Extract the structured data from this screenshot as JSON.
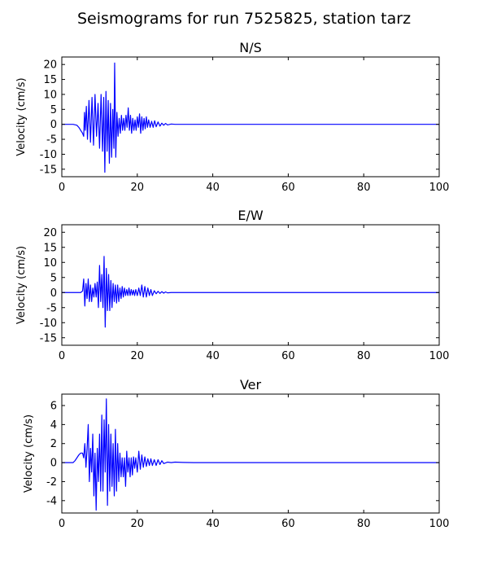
{
  "title": "Seismograms for run 7525825, station tarz",
  "colors": {
    "trace": "#0000ff",
    "axes": "#000000",
    "background": "#ffffff"
  },
  "chart_data": [
    {
      "type": "line",
      "title": "N/S",
      "xlabel": "",
      "ylabel": "Velocity (cm/s)",
      "xlim": [
        0,
        100
      ],
      "ylim": [
        -17.5,
        22.5
      ],
      "xticks": [
        0,
        20,
        40,
        60,
        80,
        100
      ],
      "yticks": [
        -15,
        -10,
        -5,
        0,
        5,
        10,
        15,
        20
      ],
      "grid": false,
      "series": [
        {
          "x": [
            0,
            3,
            4,
            4.5,
            5,
            5.5,
            5.8,
            6,
            6.2,
            6.5,
            6.8,
            7.2,
            7.6,
            8,
            8.4,
            8.8,
            9.2,
            9.6,
            10,
            10.4,
            10.8,
            11.1,
            11.4,
            11.7,
            12,
            12.3,
            12.6,
            12.9,
            13.2,
            13.5,
            13.8,
            14,
            14.3,
            14.6,
            14.9,
            15.2,
            15.5,
            15.8,
            16.1,
            16.4,
            16.7,
            17,
            17.3,
            17.6,
            17.9,
            18.2,
            18.5,
            18.8,
            19.1,
            19.4,
            19.7,
            20,
            20.3,
            20.6,
            20.9,
            21.2,
            21.5,
            21.8,
            22.1,
            22.4,
            22.7,
            23,
            23.4,
            23.8,
            24.2,
            24.6,
            25,
            25.5,
            26,
            26.5,
            27,
            27.5,
            28,
            29,
            30,
            32,
            35,
            40,
            60,
            80,
            100
          ],
          "y": [
            0,
            0,
            -0.3,
            -1,
            -2,
            -3,
            -4,
            4,
            -2,
            6,
            -5,
            8,
            -6,
            9,
            -7,
            10,
            -4,
            7,
            -8,
            10,
            -9,
            9,
            -16,
            11,
            -9,
            8,
            -13,
            7,
            -11,
            5,
            -8,
            20.5,
            -11,
            4,
            -4,
            2,
            -3,
            3,
            -2,
            2,
            -2,
            3,
            -1,
            5.5,
            -2,
            3,
            -3,
            2,
            -2,
            1.5,
            -2,
            2.5,
            -1,
            3.5,
            -3,
            2.5,
            -2,
            2,
            -1.5,
            2.5,
            -1,
            1.5,
            -1,
            1,
            -1,
            1.2,
            -0.8,
            0.8,
            -0.6,
            0.4,
            -0.3,
            0.3,
            -0.2,
            0.1,
            0,
            0,
            0,
            0,
            0,
            0,
            0
          ]
        }
      ]
    },
    {
      "type": "line",
      "title": "E/W",
      "xlabel": "",
      "ylabel": "Velocity (cm/s)",
      "xlim": [
        0,
        100
      ],
      "ylim": [
        -17.5,
        22.5
      ],
      "xticks": [
        0,
        20,
        40,
        60,
        80,
        100
      ],
      "yticks": [
        -15,
        -10,
        -5,
        0,
        5,
        10,
        15,
        20
      ],
      "grid": false,
      "series": [
        {
          "x": [
            0,
            5,
            5.5,
            5.8,
            6.1,
            6.4,
            6.7,
            7,
            7.3,
            7.6,
            7.9,
            8.2,
            8.5,
            8.8,
            9.1,
            9.4,
            9.7,
            10,
            10.3,
            10.6,
            10.9,
            11.2,
            11.5,
            11.8,
            12.1,
            12.4,
            12.7,
            13,
            13.3,
            13.6,
            13.9,
            14.2,
            14.5,
            14.8,
            15.1,
            15.4,
            15.7,
            16,
            16.3,
            16.6,
            16.9,
            17.2,
            17.5,
            17.8,
            18.1,
            18.4,
            18.7,
            19,
            19.3,
            19.6,
            20,
            20.4,
            20.8,
            21.2,
            21.6,
            22,
            22.4,
            22.8,
            23.2,
            23.6,
            24,
            24.5,
            25,
            25.5,
            26,
            26.5,
            27,
            27.5,
            28,
            29,
            30,
            35,
            40,
            60,
            80,
            100
          ],
          "y": [
            0,
            0,
            0.5,
            4.5,
            -4.5,
            3,
            -2,
            4.5,
            -3,
            2.5,
            -3,
            1.5,
            -1.5,
            3,
            -1.5,
            3.5,
            -5,
            9,
            -3,
            6,
            -5,
            12,
            -11.5,
            8,
            -6,
            6,
            -6,
            4,
            -5,
            3,
            -3,
            2.5,
            -3.5,
            2.5,
            -3,
            1.5,
            -2,
            2,
            -1.5,
            1.5,
            -1,
            1,
            -1,
            1.5,
            -1,
            1,
            -0.8,
            0.8,
            -1,
            1,
            -1,
            1.5,
            -1,
            2.5,
            -1.5,
            2,
            -1.5,
            1.5,
            -1,
            1,
            -1,
            0.6,
            -0.4,
            0.4,
            -0.3,
            0.3,
            -0.2,
            0.2,
            -0.1,
            0,
            0,
            0,
            0,
            0,
            0,
            0
          ]
        }
      ]
    },
    {
      "type": "line",
      "title": "Ver",
      "xlabel": "",
      "ylabel": "Velocity (cm/s)",
      "xlim": [
        0,
        100
      ],
      "ylim": [
        -5.3,
        7.2
      ],
      "xticks": [
        0,
        20,
        40,
        60,
        80,
        100
      ],
      "yticks": [
        -4,
        -2,
        0,
        2,
        4,
        6
      ],
      "grid": false,
      "series": [
        {
          "x": [
            0,
            3,
            3.5,
            4,
            4.5,
            5,
            5.5,
            5.8,
            6.1,
            6.4,
            6.7,
            7,
            7.3,
            7.6,
            7.9,
            8.2,
            8.5,
            8.8,
            9.1,
            9.4,
            9.7,
            10,
            10.3,
            10.6,
            10.9,
            11.2,
            11.5,
            11.8,
            12.1,
            12.4,
            12.7,
            13,
            13.3,
            13.6,
            13.9,
            14.2,
            14.5,
            14.8,
            15.1,
            15.4,
            15.7,
            16,
            16.3,
            16.6,
            16.9,
            17.2,
            17.5,
            17.8,
            18.1,
            18.4,
            18.7,
            19,
            19.3,
            19.6,
            20,
            20.4,
            20.8,
            21.2,
            21.6,
            22,
            22.4,
            22.8,
            23.2,
            23.6,
            24,
            24.5,
            25,
            25.5,
            26,
            26.5,
            27,
            28,
            29,
            30,
            32,
            35,
            38,
            40,
            60,
            80,
            100
          ],
          "y": [
            0,
            0,
            0.2,
            0.5,
            0.8,
            1,
            1,
            0.5,
            2,
            -0.5,
            1.5,
            4,
            -2,
            1.5,
            -1,
            3,
            -3.5,
            1,
            -5,
            1.5,
            -2,
            3,
            -3,
            5,
            -3,
            4.5,
            -1,
            6.7,
            -4.5,
            4,
            -3,
            3,
            -2.5,
            2,
            -3.5,
            3.5,
            -3,
            2,
            -2,
            1,
            -1.5,
            0.5,
            -1.5,
            0.5,
            -2.5,
            1.2,
            -1,
            0.5,
            -1.5,
            0.5,
            -1.3,
            0.6,
            -0.6,
            0.5,
            -1,
            1.2,
            -0.7,
            0.8,
            -0.5,
            0.6,
            -0.4,
            0.4,
            -0.3,
            0.4,
            -0.3,
            0.3,
            -0.3,
            0.3,
            -0.2,
            0.2,
            -0.1,
            0.05,
            0,
            0.05,
            0.02,
            0,
            0,
            0,
            0,
            0,
            0
          ]
        }
      ]
    }
  ]
}
